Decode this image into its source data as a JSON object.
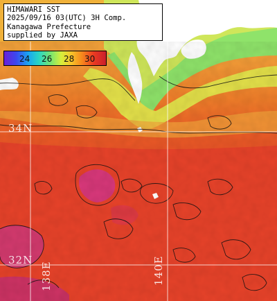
{
  "header": {
    "line1": "HIMAWARI SST",
    "line2": "2025/09/16 03(UTC) 3H Comp.",
    "line3": "Kanagawa Prefecture",
    "line4": "supplied by JAXA"
  },
  "legend": {
    "ticks": [
      "24",
      "26",
      "28",
      "30"
    ]
  },
  "grid_labels": {
    "lat_34": "34N",
    "lat_32": "32N",
    "lon_138": "138E",
    "lon_140": "140E"
  },
  "colors": {
    "warm_red": "#e8402a",
    "orange": "#f2812c",
    "yellow_orange": "#f3b23a",
    "green": "#8fe36a",
    "magenta": "#c63a78",
    "land": "#ffffff",
    "grid": "#ffffff"
  }
}
